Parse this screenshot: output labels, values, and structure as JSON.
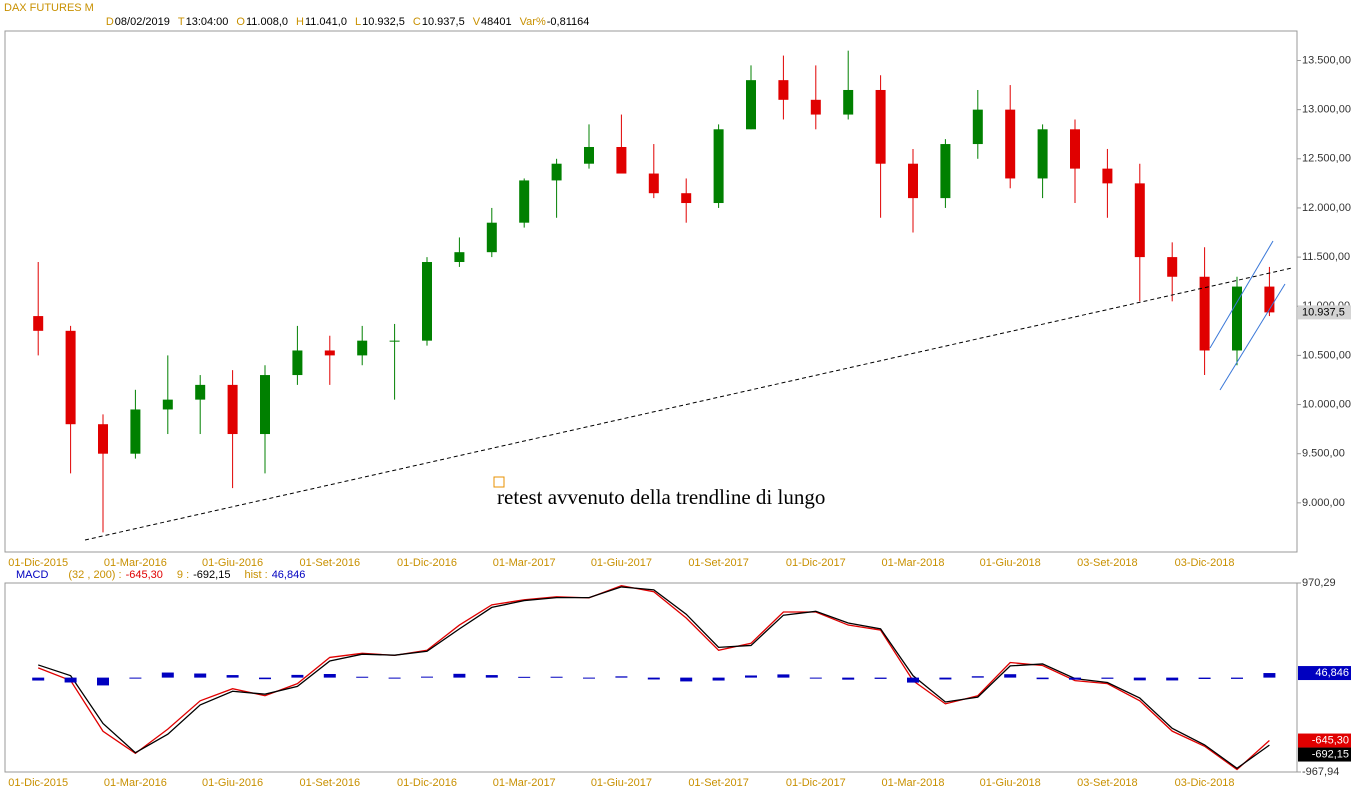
{
  "chart_data": [
    {
      "type": "candlestick",
      "title": "DAX FUTURES M",
      "info": [
        {
          "label": "D",
          "value": "08/02/2019"
        },
        {
          "label": "T",
          "value": "13:04:00"
        },
        {
          "label": "O",
          "value": "11.008,0"
        },
        {
          "label": "H",
          "value": "11.041,0"
        },
        {
          "label": "L",
          "value": "10.932,5"
        },
        {
          "label": "C",
          "value": "10.937,5"
        },
        {
          "label": "V",
          "value": "48401"
        },
        {
          "label": "Var%",
          "value": "-0,81164"
        }
      ],
      "categories": [
        "01-Dic-2015",
        null,
        null,
        "01-Mar-2016",
        null,
        null,
        "01-Giu-2016",
        null,
        null,
        "01-Set-2016",
        null,
        null,
        "01-Dic-2016",
        null,
        null,
        "01-Mar-2017",
        null,
        null,
        "01-Giu-2017",
        null,
        null,
        "01-Set-2017",
        null,
        null,
        "01-Dic-2017",
        null,
        null,
        "01-Mar-2018",
        null,
        null,
        "01-Giu-2018",
        null,
        null,
        "03-Set-2018",
        null,
        null,
        "03-Dic-2018",
        null,
        null
      ],
      "open": [
        10900,
        10750,
        9800,
        9500,
        9950,
        10050,
        10200,
        9700,
        10300,
        10550,
        10500,
        10650,
        10650,
        11450,
        11550,
        11850,
        12280,
        12450,
        12620,
        12350,
        12150,
        12050,
        12800,
        13300,
        13100,
        12950,
        13200,
        12450,
        12100,
        12650,
        13000,
        12300,
        12800,
        12400,
        12250,
        11500,
        11300,
        10550,
        11200
      ],
      "high": [
        11450,
        10800,
        9900,
        10150,
        10500,
        10300,
        10350,
        10400,
        10800,
        10700,
        10800,
        10820,
        11500,
        11700,
        12000,
        12300,
        12500,
        12850,
        12950,
        12650,
        12300,
        12850,
        13450,
        13550,
        13450,
        13600,
        13350,
        12600,
        12700,
        13200,
        13250,
        12850,
        12900,
        12600,
        12450,
        11650,
        11600,
        11300,
        11400
      ],
      "low": [
        10500,
        9300,
        8700,
        9450,
        9700,
        9700,
        9150,
        9300,
        10200,
        10200,
        10400,
        10050,
        10600,
        11400,
        11500,
        11800,
        11900,
        12400,
        12400,
        12100,
        11850,
        12000,
        12800,
        12900,
        12800,
        12900,
        11900,
        11750,
        12000,
        12500,
        12200,
        12100,
        12050,
        11900,
        11050,
        11050,
        10300,
        10400,
        10900
      ],
      "close": [
        10750,
        9800,
        9500,
        9950,
        10050,
        10200,
        9700,
        10300,
        10550,
        10500,
        10650,
        10650,
        11450,
        11550,
        11850,
        12280,
        12450,
        12620,
        12350,
        12150,
        12050,
        12800,
        13300,
        13100,
        12950,
        13200,
        12450,
        12100,
        12650,
        13000,
        12300,
        12800,
        12400,
        12250,
        11500,
        11300,
        10550,
        11200,
        10937.5
      ],
      "up_color": "#008000",
      "down_color": "#e00000",
      "ylim": [
        8500,
        13800
      ],
      "yticks": [
        {
          "value": 9000,
          "label": "9.000,00"
        },
        {
          "value": 9500,
          "label": "9.500,00"
        },
        {
          "value": 10000,
          "label": "10.000,00"
        },
        {
          "value": 10500,
          "label": "10.500,00"
        },
        {
          "value": 11000,
          "label": "11.000,00"
        },
        {
          "value": 11500,
          "label": "11.500,00"
        },
        {
          "value": 12000,
          "label": "12.000,00"
        },
        {
          "value": 12500,
          "label": "12.500,00"
        },
        {
          "value": 13000,
          "label": "13.000,00"
        },
        {
          "value": 13500,
          "label": "13.500,00"
        }
      ],
      "last_price": {
        "value": 10937.5,
        "label": "10.937,5"
      },
      "annotation": "retest avvenuto della trendline di lungo"
    },
    {
      "type": "macd",
      "title": "MACD",
      "categories": [
        "01-Dic-2015",
        null,
        null,
        "01-Mar-2016",
        null,
        null,
        "01-Giu-2016",
        null,
        null,
        "01-Set-2016",
        null,
        null,
        "01-Dic-2016",
        null,
        null,
        "01-Mar-2017",
        null,
        null,
        "01-Giu-2017",
        null,
        null,
        "01-Set-2017",
        null,
        null,
        "01-Dic-2017",
        null,
        null,
        "01-Mar-2018",
        null,
        null,
        "01-Giu-2018",
        null,
        null,
        "03-Set-2018",
        null,
        null,
        "03-Dic-2018",
        null,
        null
      ],
      "ylim": [
        -967.94,
        970.29
      ],
      "yticks": [
        {
          "value": 970.29,
          "label": "970,29"
        },
        {
          "value": -967.94,
          "label": "-967,94"
        }
      ],
      "series": [
        {
          "name": "(32 , 200) :",
          "color": "#e00000",
          "kind": "line",
          "values": [
            100,
            -30,
            -550,
            -777,
            -528,
            -238,
            -114,
            -186,
            -62,
            207,
            249,
            228,
            280,
            539,
            746,
            798,
            829,
            818,
            943,
            881,
            611,
            280,
            352,
            673,
            673,
            539,
            487,
            -31,
            -269,
            -186,
            155,
            124,
            -31,
            -62,
            -238,
            -549,
            -704,
            -943,
            -645.3
          ],
          "value_labels": [
            null,
            null,
            null,
            null,
            null,
            null,
            null,
            null,
            null,
            null,
            null,
            null,
            null,
            null,
            null,
            null,
            null,
            null,
            null,
            null,
            null,
            null,
            null,
            null,
            null,
            null,
            null,
            null,
            null,
            null,
            null,
            null,
            null,
            null,
            null,
            null,
            null,
            null,
            "-645,30"
          ]
        },
        {
          "name": "9 :",
          "color": "#000000",
          "kind": "line",
          "values": [
            130,
            20,
            -470,
            -770,
            -580,
            -280,
            -140,
            -170,
            -90,
            170,
            240,
            230,
            270,
            500,
            720,
            790,
            820,
            820,
            930,
            900,
            650,
            310,
            330,
            640,
            680,
            560,
            500,
            20,
            -250,
            -200,
            120,
            140,
            -10,
            -50,
            -210,
            -520,
            -690,
            -930,
            -692.15
          ],
          "value_labels": [
            null,
            null,
            null,
            null,
            null,
            null,
            null,
            null,
            null,
            null,
            null,
            null,
            null,
            null,
            null,
            null,
            null,
            null,
            null,
            null,
            null,
            null,
            null,
            null,
            null,
            null,
            null,
            null,
            null,
            null,
            null,
            null,
            null,
            null,
            null,
            null,
            null,
            null,
            "-692,15"
          ]
        },
        {
          "name": "hist :",
          "color": "#0000c0",
          "kind": "bar",
          "values": [
            -30,
            -50,
            -80,
            -7,
            52,
            42,
            26,
            -16,
            28,
            37,
            9,
            -2,
            10,
            39,
            26,
            8,
            9,
            -2,
            13,
            -19,
            -39,
            -30,
            22,
            33,
            -7,
            -21,
            -13,
            -51,
            -19,
            14,
            35,
            -16,
            -21,
            -12,
            -28,
            -29,
            -14,
            -13,
            46.846
          ],
          "value_labels": [
            null,
            null,
            null,
            null,
            null,
            null,
            null,
            null,
            null,
            null,
            null,
            null,
            null,
            null,
            null,
            null,
            null,
            null,
            null,
            null,
            null,
            null,
            null,
            null,
            null,
            null,
            null,
            null,
            null,
            null,
            null,
            null,
            null,
            null,
            null,
            null,
            null,
            null,
            "46,846"
          ]
        }
      ]
    }
  ]
}
